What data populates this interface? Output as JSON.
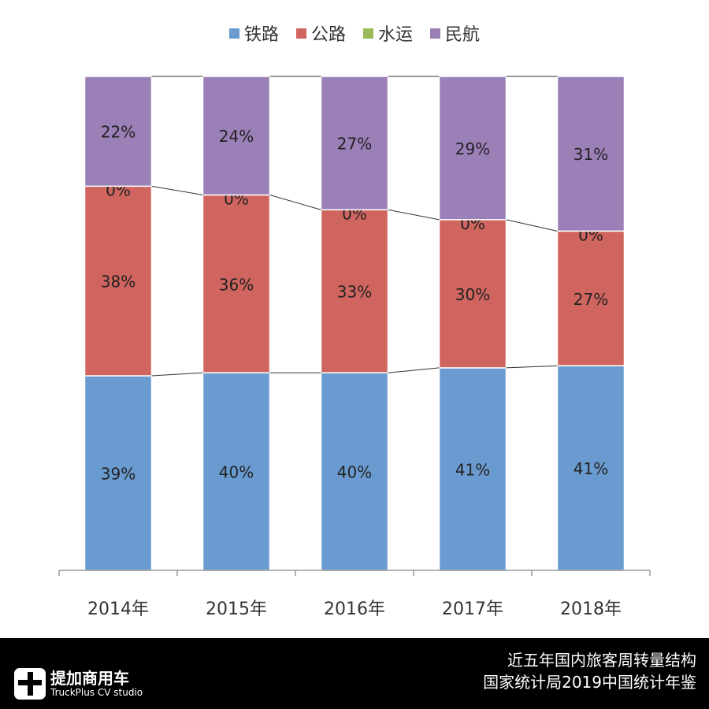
{
  "chart_data": {
    "type": "bar",
    "stacked": "percent",
    "categories": [
      "2014年",
      "2015年",
      "2016年",
      "2017年",
      "2018年"
    ],
    "series": [
      {
        "name": "铁路",
        "values": [
          39,
          40,
          40,
          41,
          41
        ],
        "color": "#6a9bd0"
      },
      {
        "name": "公路",
        "values": [
          38,
          36,
          33,
          30,
          27
        ],
        "color": "#d0655f"
      },
      {
        "name": "水运",
        "values": [
          0,
          0,
          0,
          0,
          0
        ],
        "color": "#9bbb59"
      },
      {
        "name": "民航",
        "values": [
          22,
          24,
          27,
          29,
          31
        ],
        "color": "#9b80b8"
      }
    ],
    "data_label_suffix": "%",
    "legend": "top",
    "grid": false,
    "series_lines": true
  },
  "footer": {
    "logo_cn": "提加商用车",
    "logo_en": "TruckPlus CV studio",
    "caption_line1": "近五年国内旅客周转量结构",
    "caption_line2": "国家统计局2019中国统计年鉴"
  }
}
